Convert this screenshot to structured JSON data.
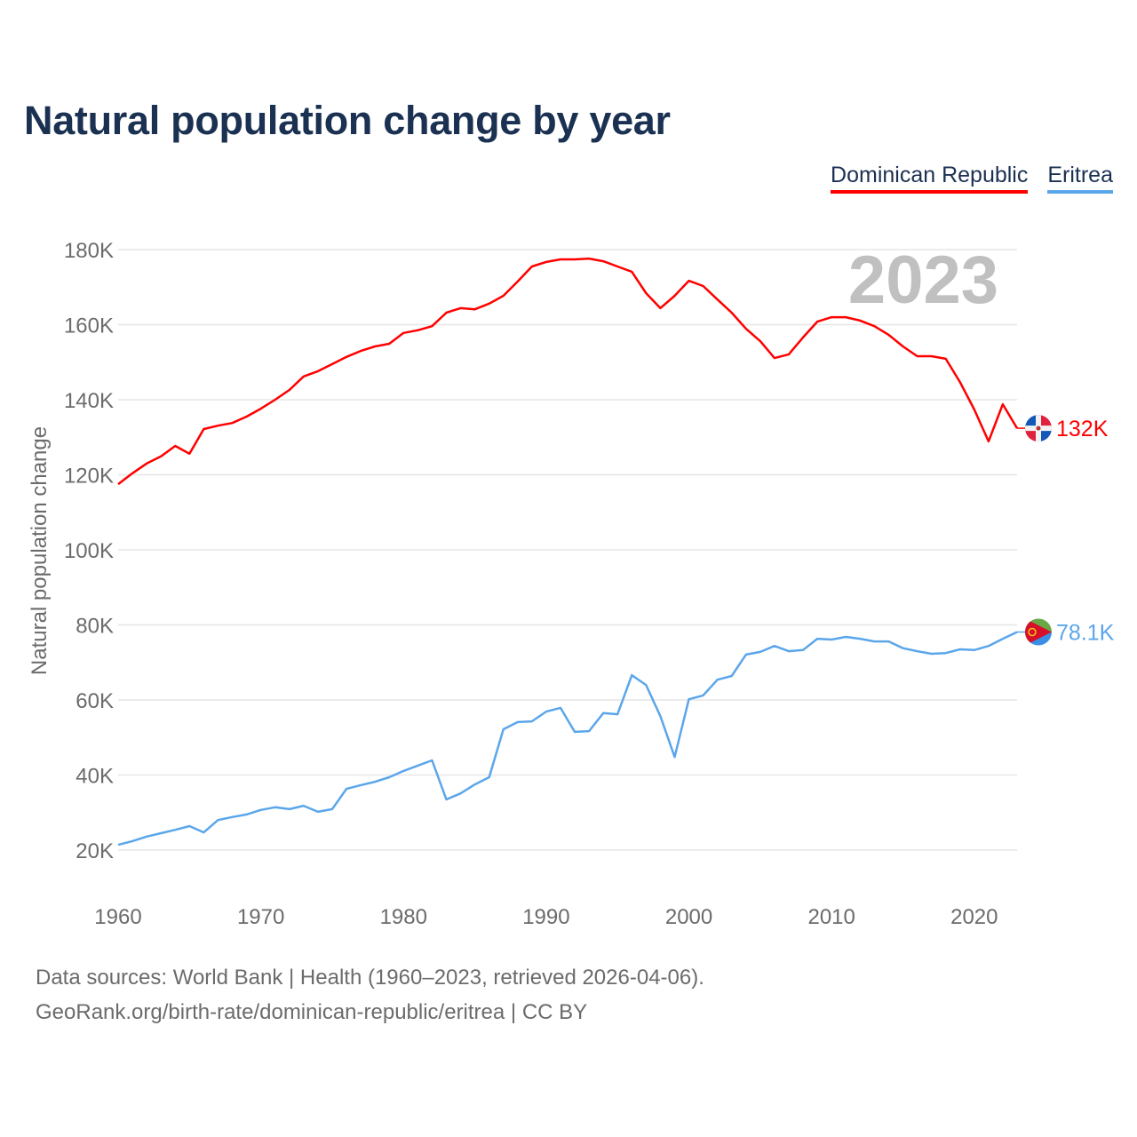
{
  "title": "Natural population change by year",
  "legend": [
    {
      "label": "Dominican Republic",
      "color": "#ff0000"
    },
    {
      "label": "Eritrea",
      "color": "#5ba6ea"
    }
  ],
  "year_watermark": "2023",
  "footer": {
    "line1": "Data sources: World Bank | Health (1960–2023, retrieved 2026-04-06).",
    "line2": "GeoRank.org/birth-rate/dominican-republic/eritrea | CC BY"
  },
  "chart_data": {
    "type": "line",
    "title": "Natural population change by year",
    "xlabel": "",
    "ylabel": "Natural population change",
    "xlim": [
      1960,
      2023
    ],
    "ylim": [
      10000,
      185000
    ],
    "x_ticks": [
      1960,
      1970,
      1980,
      1990,
      2000,
      2010,
      2020
    ],
    "y_ticks": [
      20000,
      40000,
      60000,
      80000,
      100000,
      120000,
      140000,
      160000,
      180000
    ],
    "y_tick_labels": [
      "20K",
      "40K",
      "60K",
      "80K",
      "100K",
      "120K",
      "140K",
      "160K",
      "180K"
    ],
    "grid": true,
    "legend_position": "top-right",
    "x_start": 1960,
    "series": [
      {
        "name": "Dominican Republic",
        "color": "#ff0000",
        "end_label": "132K",
        "flag": "dominican-republic-flag",
        "values": [
          117.5,
          120.4,
          123,
          124.9,
          127.7,
          125.6,
          132.2,
          133.1,
          133.8,
          135.5,
          137.6,
          140,
          142.6,
          146.2,
          147.6,
          149.5,
          151.4,
          153,
          154.2,
          154.9,
          157.8,
          158.5,
          159.6,
          163.2,
          164.4,
          164.1,
          165.6,
          167.7,
          171.5,
          175.5,
          176.7,
          177.4,
          177.4,
          177.6,
          176.9,
          175.5,
          174.1,
          168.4,
          164.4,
          167.7,
          171.7,
          170.3,
          166.7,
          163.2,
          158.9,
          155.6,
          151.1,
          152.1,
          156.6,
          160.8,
          162,
          162,
          161.1,
          159.6,
          157.3,
          154.2,
          151.6,
          151.6,
          150.9,
          144.7,
          137.4,
          128.9,
          138.8,
          132.4
        ]
      },
      {
        "name": "Eritrea",
        "color": "#5ba6ea",
        "end_label": "78.1K",
        "flag": "eritrea-flag",
        "values": [
          21.4,
          22.4,
          23.6,
          24.5,
          25.4,
          26.4,
          24.7,
          28,
          28.8,
          29.5,
          30.7,
          31.4,
          30.9,
          31.8,
          30.2,
          30.9,
          36.3,
          37.3,
          38.2,
          39.4,
          41.1,
          42.5,
          43.9,
          33.5,
          35.1,
          37.5,
          39.4,
          52.2,
          54.1,
          54.3,
          56.9,
          57.9,
          51.5,
          51.7,
          56.5,
          56.2,
          66.6,
          64,
          55.7,
          44.8,
          60.2,
          61.2,
          65.4,
          66.4,
          72.1,
          72.8,
          74.4,
          73,
          73.3,
          76.3,
          76.1,
          76.8,
          76.3,
          75.6,
          75.6,
          73.8,
          73,
          72.3,
          72.5,
          73.5,
          73.3,
          74.4,
          76.3,
          78.1
        ]
      }
    ],
    "value_unit": "thousands"
  }
}
